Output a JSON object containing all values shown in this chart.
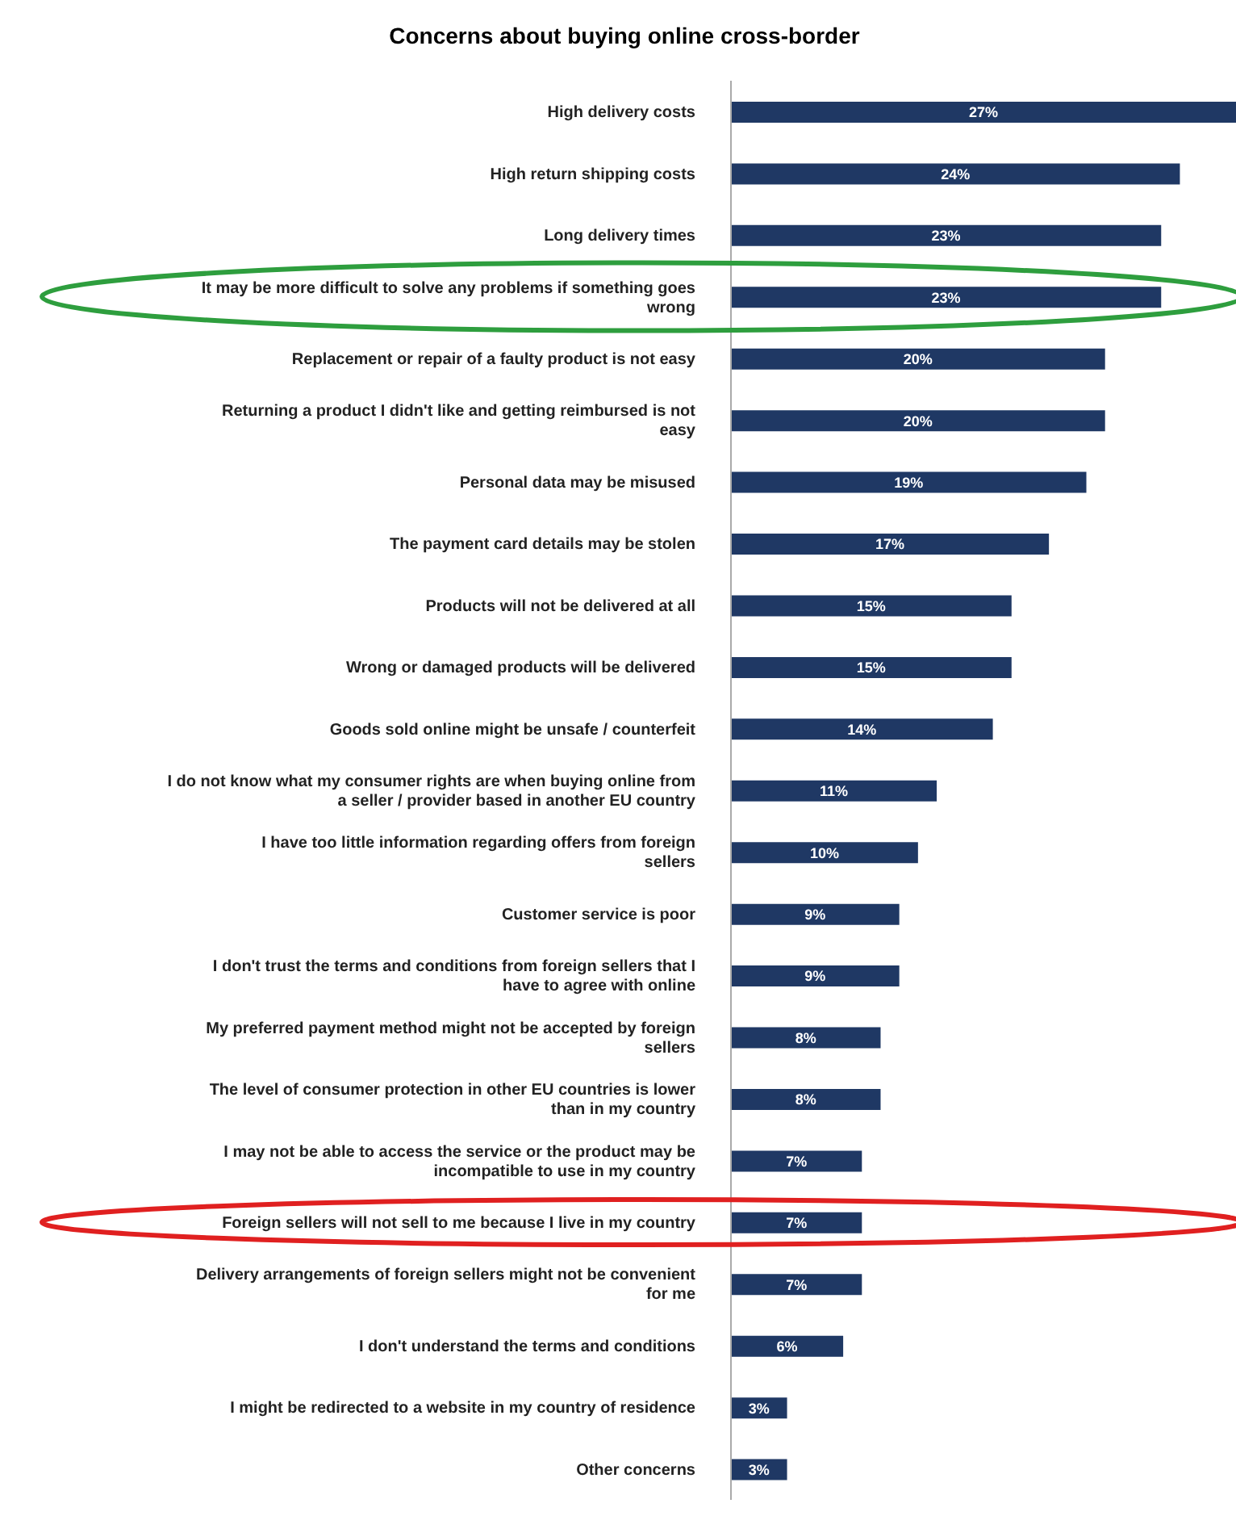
{
  "chart_data": {
    "type": "bar",
    "orientation": "horizontal",
    "title": "Concerns about buying online cross-border",
    "categories": [
      "High delivery costs",
      "High return shipping costs",
      "Long delivery times",
      "It may be more difficult to solve any problems if something goes wrong",
      "Replacement or repair of a faulty product is not easy",
      "Returning a product I didn't like and getting reimbursed is not easy",
      "Personal data may be misused",
      "The payment card details may be stolen",
      "Products will not be delivered at all",
      "Wrong or damaged products will be delivered",
      "Goods sold online might be unsafe / counterfeit",
      "I do not know what my consumer rights are when buying online from a seller / provider based in another EU country",
      "I have too little information regarding offers from foreign sellers",
      "Customer service is poor",
      "I don't trust the terms and conditions from foreign sellers that I have to agree with online",
      "My preferred payment method might not be accepted  by foreign sellers",
      "The level of consumer protection in other EU countries is lower than in my country",
      "I may not be able to access the service or the product may be incompatible to use in my country",
      "Foreign sellers will not sell to me because I live in my country",
      "Delivery arrangements of foreign sellers might not be convenient for me",
      "I don't understand the terms and conditions",
      "I might be redirected to a website in my country of residence",
      "Other concerns"
    ],
    "values": [
      27,
      24,
      23,
      23,
      20,
      20,
      19,
      17,
      15,
      15,
      14,
      11,
      10,
      9,
      9,
      8,
      8,
      7,
      7,
      7,
      6,
      3,
      3
    ],
    "value_labels": [
      "27%",
      "24%",
      "23%",
      "23%",
      "20%",
      "20%",
      "19%",
      "17%",
      "15%",
      "15%",
      "14%",
      "11%",
      "10%",
      "9%",
      "9%",
      "8%",
      "8%",
      "7%",
      "7%",
      "7%",
      "6%",
      "3%",
      "3%"
    ],
    "color": "#1f3864"
  }
}
